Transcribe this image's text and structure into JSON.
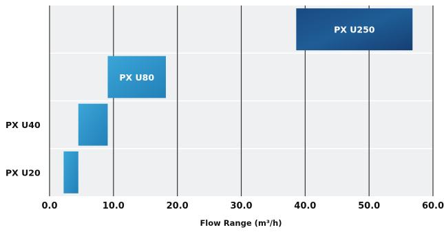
{
  "chart_data": {
    "type": "bar",
    "orientation": "horizontal-range",
    "title": "",
    "xlabel": "Flow Range  (m³/h)",
    "ylabel": "",
    "xlim": [
      0,
      60
    ],
    "xticks": [
      "0.0",
      "10.0",
      "20.0",
      "30.0",
      "40.0",
      "50.0",
      "60.0"
    ],
    "grid": true,
    "categories": [
      "PX U20",
      "PX U40",
      "PX U80",
      "PX U250"
    ],
    "axis_labels": [
      "PX U20",
      "PX U40",
      "",
      ""
    ],
    "inside_labels": [
      "",
      "",
      "PX U80",
      "PX U250"
    ],
    "ranges": [
      {
        "min": 2.2,
        "max": 4.5
      },
      {
        "min": 4.5,
        "max": 9.1
      },
      {
        "min": 9.1,
        "max": 18.2
      },
      {
        "min": 38.6,
        "max": 56.8
      }
    ],
    "colors": {
      "plot_background": "#eff0f2",
      "PX U20": "#2b96cc",
      "PX U40": "#2a92c6",
      "PX U80": "#2a8dc2",
      "PX U250": "#1c4f8a"
    }
  }
}
